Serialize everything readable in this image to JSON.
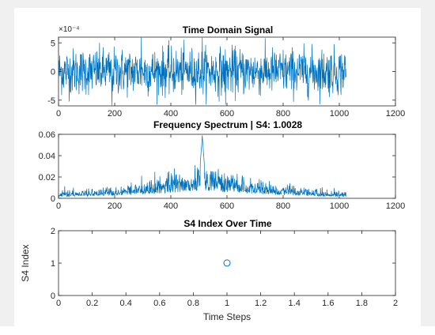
{
  "chart_data": [
    {
      "type": "line",
      "title": "Time Domain Signal",
      "xlabel": "",
      "ylabel": "",
      "xlim": [
        0,
        1200
      ],
      "ylim": [
        -6,
        6
      ],
      "xticks": [
        "0",
        "200",
        "400",
        "600",
        "800",
        "1000",
        "1200"
      ],
      "yticks": [
        "-5",
        "0",
        "5"
      ],
      "y_exponent_label": "×10⁻⁴",
      "y_multiplier": 0.0001,
      "n_samples": 1024,
      "x_range": [
        1,
        1024
      ],
      "series": [
        {
          "color": "#0072BD",
          "description_values": "noise-like samples, roughly within -6e-4 to 6e-4"
        }
      ],
      "grid": false
    },
    {
      "type": "line",
      "title": "Frequency Spectrum | S4: 1.0028",
      "xlabel": "",
      "ylabel": "",
      "xlim": [
        0,
        1200
      ],
      "ylim": [
        0,
        0.06
      ],
      "xticks": [
        "0",
        "200",
        "400",
        "600",
        "800",
        "1000",
        "1200"
      ],
      "yticks": [
        "0",
        "0.02",
        "0.04",
        "0.06"
      ],
      "n_samples": 1024,
      "x_range": [
        1,
        1024
      ],
      "peak": {
        "x": 512,
        "y": 0.059
      },
      "series": [
        {
          "color": "#0072BD",
          "description_values": "spectrum magnitude rising from ~0.003 at edges to ~0.02 near center with a peak of ~0.059 at x=512"
        }
      ],
      "grid": false
    },
    {
      "type": "scatter",
      "title": "S4 Index Over Time",
      "xlabel": "Time Steps",
      "ylabel": "S4 Index",
      "xlim": [
        0,
        2
      ],
      "ylim": [
        0,
        2
      ],
      "xticks": [
        "0",
        "0.2",
        "0.4",
        "0.6",
        "0.8",
        "1",
        "1.2",
        "1.4",
        "1.6",
        "1.8",
        "2"
      ],
      "yticks": [
        "0",
        "1",
        "2"
      ],
      "series": [
        {
          "color": "#0072BD",
          "marker": "circle",
          "points": [
            {
              "x": 1,
              "y": 1.0028
            }
          ]
        }
      ],
      "grid": false
    }
  ]
}
